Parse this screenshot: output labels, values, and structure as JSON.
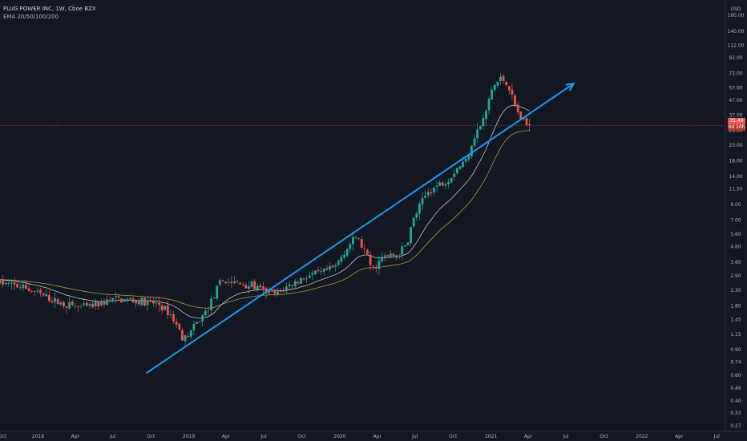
{
  "legend": {
    "symbol": "PLUG POWER INC, 1W, Cboe BZX",
    "indicator": "EMA 20/50/100/200"
  },
  "price_axis": {
    "currency": "USD",
    "last_price": "31.49",
    "countdown": "4d 10h"
  },
  "colors": {
    "background": "#131722",
    "up": "#26a69a",
    "down": "#ef5350",
    "trendline": "#2196f3",
    "ema20": "#e0e3eb",
    "ema50": "#c9b84a",
    "price_line": "#f05350"
  },
  "chart_data": {
    "type": "candlestick",
    "scale": "log",
    "grid": false,
    "y_ticks": [
      180.0,
      140.0,
      112.0,
      92.0,
      72.0,
      57.0,
      47.0,
      37.0,
      29.0,
      23.0,
      18.0,
      14.0,
      11.5,
      9.0,
      7.0,
      5.6,
      4.6,
      3.6,
      2.9,
      2.3,
      1.8,
      1.45,
      1.15,
      0.9,
      0.74,
      0.6,
      0.49,
      0.4,
      0.33,
      0.27
    ],
    "x_ticks": [
      "Oct",
      "2018",
      "Apr",
      "Jul",
      "Oct",
      "2019",
      "Apr",
      "Jul",
      "Oct",
      "2020",
      "Apr",
      "Jul",
      "Oct",
      "2021",
      "Apr",
      "Jul",
      "Oct",
      "2022",
      "Apr",
      "Jul"
    ],
    "x_start": "2017-10-01",
    "x_end": "2022-07-20",
    "last_price": 31.49,
    "anchors": [
      [
        "2017-10-01",
        2.6
      ],
      [
        "2017-12-01",
        2.4
      ],
      [
        "2018-01-15",
        2.1
      ],
      [
        "2018-03-01",
        1.85
      ],
      [
        "2018-05-01",
        1.75
      ],
      [
        "2018-07-01",
        2.0
      ],
      [
        "2018-09-01",
        1.95
      ],
      [
        "2018-10-20",
        1.85
      ],
      [
        "2018-11-20",
        1.55
      ],
      [
        "2018-12-20",
        1.05
      ],
      [
        "2019-01-15",
        1.3
      ],
      [
        "2019-02-15",
        1.7
      ],
      [
        "2019-03-20",
        2.7
      ],
      [
        "2019-05-01",
        2.55
      ],
      [
        "2019-06-01",
        2.5
      ],
      [
        "2019-06-25",
        2.3
      ],
      [
        "2019-08-01",
        2.15
      ],
      [
        "2019-09-01",
        2.5
      ],
      [
        "2019-10-15",
        2.9
      ],
      [
        "2019-11-15",
        3.0
      ],
      [
        "2019-12-20",
        3.3
      ],
      [
        "2020-01-15",
        4.4
      ],
      [
        "2020-02-10",
        5.4
      ],
      [
        "2020-03-01",
        4.3
      ],
      [
        "2020-03-20",
        3.2
      ],
      [
        "2020-04-15",
        3.9
      ],
      [
        "2020-05-15",
        4.0
      ],
      [
        "2020-06-10",
        4.7
      ],
      [
        "2020-06-25",
        6.8
      ],
      [
        "2020-07-10",
        8.5
      ],
      [
        "2020-08-01",
        11.0
      ],
      [
        "2020-09-01",
        12.5
      ],
      [
        "2020-09-20",
        13.5
      ],
      [
        "2020-10-10",
        16.0
      ],
      [
        "2020-11-01",
        18.0
      ],
      [
        "2020-11-20",
        26.0
      ],
      [
        "2020-12-15",
        35.0
      ],
      [
        "2021-01-05",
        58.0
      ],
      [
        "2021-01-25",
        66.0
      ],
      [
        "2021-02-10",
        62.0
      ],
      [
        "2021-02-25",
        45.0
      ],
      [
        "2021-03-10",
        37.0
      ],
      [
        "2021-03-25",
        32.0
      ],
      [
        "2021-04-05",
        31.49
      ]
    ],
    "trendline": {
      "from": [
        "2018-09-20",
        0.62
      ],
      "to": [
        "2021-07-20",
        61.0
      ]
    }
  }
}
